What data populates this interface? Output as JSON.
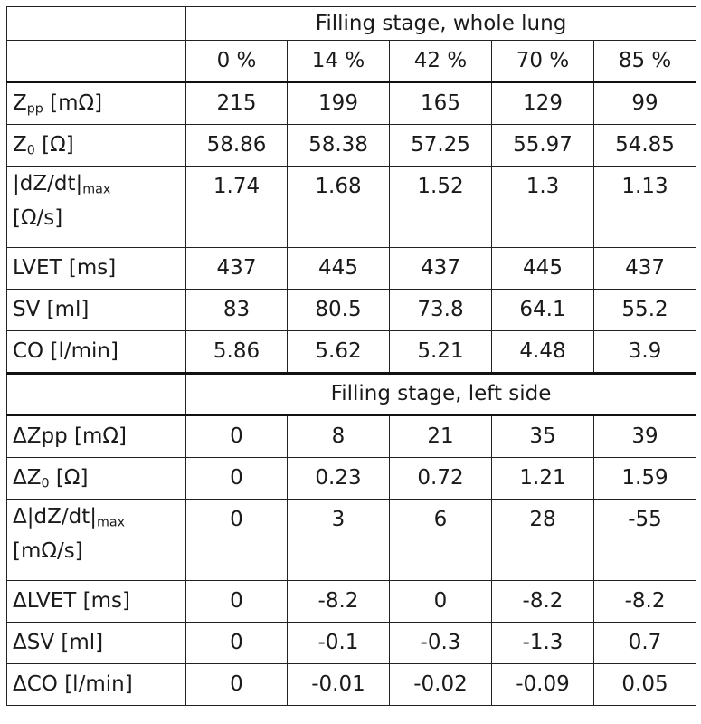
{
  "columns": [
    "0 %",
    "14 %",
    "42 %",
    "70 %",
    "85 %"
  ],
  "whole_lung": {
    "header": "Filling stage, whole lung",
    "rows": [
      {
        "label_main": "Z",
        "label_sub": "pp",
        "label_rest": " [mΩ]",
        "values": [
          "215",
          "199",
          "165",
          "129",
          "99"
        ]
      },
      {
        "label_main": "Z",
        "label_sub": "0",
        "label_rest": " [Ω]",
        "values": [
          "58.86",
          "58.38",
          "57.25",
          "55.97",
          "54.85"
        ]
      },
      {
        "label_main": "|dZ/dt|",
        "label_sub": "max",
        "label_line2": "[Ω/s]",
        "values": [
          "1.74",
          "1.68",
          "1.52",
          "1.3",
          "1.13"
        ]
      },
      {
        "label_main": "LVET [ms]",
        "values": [
          "437",
          "445",
          "437",
          "445",
          "437"
        ]
      },
      {
        "label_main": "SV [ml]",
        "values": [
          "83",
          "80.5",
          "73.8",
          "64.1",
          "55.2"
        ]
      },
      {
        "label_main": "CO [l/min]",
        "values": [
          "5.86",
          "5.62",
          "5.21",
          "4.48",
          "3.9"
        ]
      }
    ]
  },
  "left_side": {
    "header": "Filling stage, left side",
    "rows": [
      {
        "label_main": "ΔZpp [mΩ]",
        "values": [
          "0",
          "8",
          "21",
          "35",
          "39"
        ]
      },
      {
        "label_main": "ΔZ",
        "label_sub": "0",
        "label_rest": " [Ω]",
        "values": [
          "0",
          "0.23",
          "0.72",
          "1.21",
          "1.59"
        ]
      },
      {
        "label_main": "Δ|dZ/dt|",
        "label_sub": "max",
        "label_line2": "[mΩ/s]",
        "values": [
          "0",
          "3",
          "6",
          "28",
          "-55"
        ]
      },
      {
        "label_main": "ΔLVET [ms]",
        "values": [
          "0",
          "-8.2",
          "0",
          "-8.2",
          "-8.2"
        ]
      },
      {
        "label_main": "ΔSV [ml]",
        "values": [
          "0",
          "-0.1",
          "-0.3",
          "-1.3",
          "0.7"
        ]
      },
      {
        "label_main": "ΔCO [l/min]",
        "values": [
          "0",
          "-0.01",
          "-0.02",
          "-0.09",
          "0.05"
        ]
      }
    ]
  }
}
